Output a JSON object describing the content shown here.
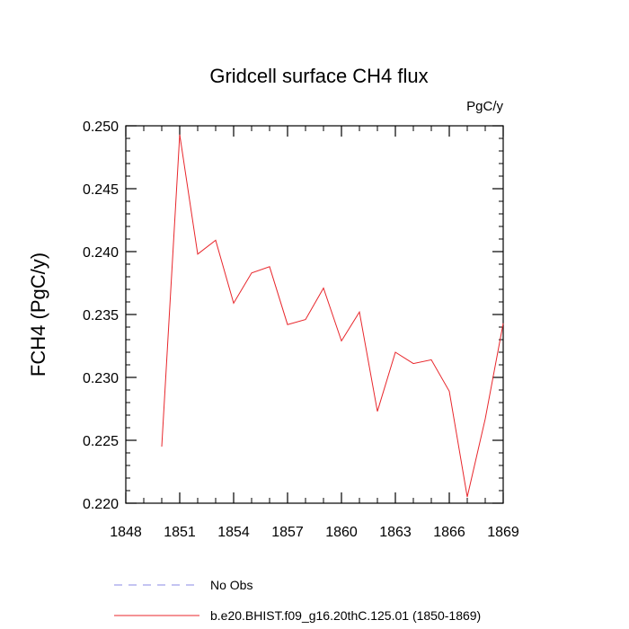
{
  "chart_data": {
    "type": "line",
    "title": "Gridcell surface CH4 flux",
    "units_label": "PgC/y",
    "xlabel": "",
    "ylabel": "FCH4  (PgC/y)",
    "xlim": [
      1848,
      1869
    ],
    "ylim": [
      0.22,
      0.25
    ],
    "x_ticks": [
      1848,
      1851,
      1854,
      1857,
      1860,
      1863,
      1866,
      1869
    ],
    "x_tick_labels": [
      "1848",
      "1851",
      "1854",
      "1857",
      "1860",
      "1863",
      "1866",
      "1869"
    ],
    "y_ticks": [
      0.22,
      0.225,
      0.23,
      0.235,
      0.24,
      0.245,
      0.25
    ],
    "y_tick_labels": [
      "0.220",
      "0.225",
      "0.230",
      "0.235",
      "0.240",
      "0.245",
      "0.250"
    ],
    "x_minor_step": 1,
    "y_minor_step": 0.001,
    "grid": false,
    "legend_position": "bottom",
    "series": [
      {
        "name": "b.e20.BHIST.f09_g16.20thC.125.01 (1850-1869)",
        "color": "#e8262b",
        "style": "solid",
        "x": [
          1850,
          1851,
          1852,
          1853,
          1854,
          1855,
          1856,
          1857,
          1858,
          1859,
          1860,
          1861,
          1862,
          1863,
          1864,
          1865,
          1866,
          1867,
          1868,
          1869
        ],
        "values": [
          0.2245,
          0.2493,
          0.2398,
          0.2409,
          0.2359,
          0.2383,
          0.2388,
          0.2342,
          0.2346,
          0.2371,
          0.2329,
          0.2352,
          0.2273,
          0.232,
          0.2311,
          0.2314,
          0.2289,
          0.2205,
          0.2267,
          0.2343
        ]
      }
    ],
    "legend": [
      {
        "label": "No Obs",
        "color": "#8a8ae6",
        "style": "dashed"
      },
      {
        "label": "b.e20.BHIST.f09_g16.20thC.125.01 (1850-1869)",
        "color": "#e8262b",
        "style": "solid"
      }
    ]
  }
}
